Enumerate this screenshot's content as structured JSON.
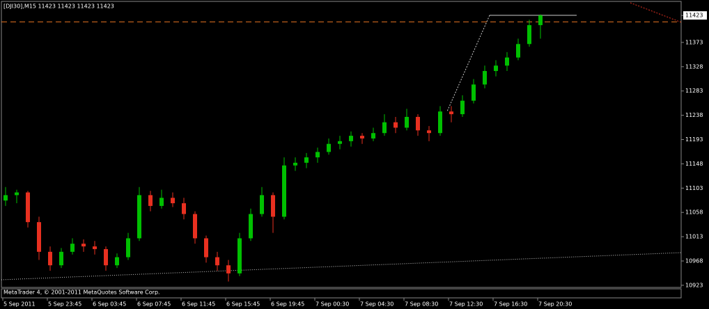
{
  "chart_data": {
    "type": "candlestick",
    "title": "[DJI30],M15  11423 11423 11423 11423",
    "footer": "MetaTrader 4, © 2001-2011 MetaQuotes Software Corp.",
    "categories": [
      "5 Sep 2011",
      null,
      null,
      null,
      "5 Sep 23:45",
      null,
      null,
      null,
      "6 Sep 03:45",
      null,
      null,
      null,
      "6 Sep 07:45",
      null,
      null,
      null,
      "6 Sep 11:45",
      null,
      null,
      null,
      "6 Sep 15:45",
      null,
      null,
      null,
      "6 Sep 19:45",
      null,
      null,
      null,
      "7 Sep 00:30",
      null,
      null,
      null,
      "7 Sep 04:30",
      null,
      null,
      null,
      "7 Sep 08:30",
      null,
      null,
      null,
      "7 Sep 12:30",
      null,
      null,
      null,
      "7 Sep 16:30",
      null,
      null,
      null,
      "7 Sep 20:30"
    ],
    "open": [
      11080,
      11090,
      11095,
      11040,
      10985,
      10960,
      10985,
      11000,
      10995,
      10990,
      10960,
      10975,
      11010,
      11090,
      11070,
      11085,
      11075,
      11055,
      11010,
      10975,
      10960,
      10945,
      11010,
      11055,
      11090,
      11050,
      11145,
      11150,
      11160,
      11170,
      11185,
      11190,
      11200,
      11195,
      11205,
      11225,
      11215,
      11235,
      11210,
      11205,
      11245,
      11240,
      11265,
      11295,
      11320,
      11330,
      11345,
      11370,
      11405
    ],
    "high": [
      11105,
      11100,
      11098,
      11050,
      10995,
      10992,
      11010,
      11008,
      11005,
      10995,
      10982,
      11020,
      11105,
      11098,
      11100,
      11095,
      11085,
      11060,
      11015,
      10985,
      10970,
      11020,
      11065,
      11105,
      11095,
      11160,
      11160,
      11168,
      11178,
      11195,
      11200,
      11208,
      11205,
      11215,
      11240,
      11235,
      11250,
      11240,
      11218,
      11255,
      11255,
      11275,
      11305,
      11330,
      11340,
      11355,
      11380,
      11415,
      11425
    ],
    "low": [
      11070,
      11075,
      11030,
      10970,
      10950,
      10955,
      10980,
      10985,
      10980,
      10950,
      10955,
      10970,
      11005,
      11060,
      11065,
      11068,
      11045,
      11000,
      10965,
      10950,
      10930,
      10940,
      11005,
      11050,
      11020,
      11045,
      11135,
      11140,
      11150,
      11165,
      11175,
      11180,
      11185,
      11190,
      11200,
      11205,
      11210,
      11200,
      11190,
      11200,
      11225,
      11235,
      11260,
      11288,
      11310,
      11320,
      11340,
      11365,
      11380
    ],
    "close": [
      11090,
      11095,
      11040,
      10985,
      10960,
      10985,
      11000,
      10995,
      10990,
      10960,
      10975,
      11010,
      11090,
      11070,
      11085,
      11075,
      11055,
      11010,
      10975,
      10960,
      10945,
      11010,
      11055,
      11090,
      11050,
      11145,
      11150,
      11160,
      11170,
      11185,
      11190,
      11200,
      11195,
      11205,
      11225,
      11215,
      11235,
      11210,
      11205,
      11245,
      11240,
      11265,
      11295,
      11320,
      11330,
      11345,
      11370,
      11405,
      11423
    ],
    "up_color": "#00c000",
    "down_color": "#e83020",
    "ask_line": 11411,
    "ask_line_color": "#e07020",
    "ylim": [
      10919,
      11449
    ],
    "yticks": [
      11423,
      11373,
      11328,
      11283,
      11238,
      11193,
      11148,
      11103,
      11058,
      11013,
      10968,
      10923
    ],
    "grid": false
  }
}
